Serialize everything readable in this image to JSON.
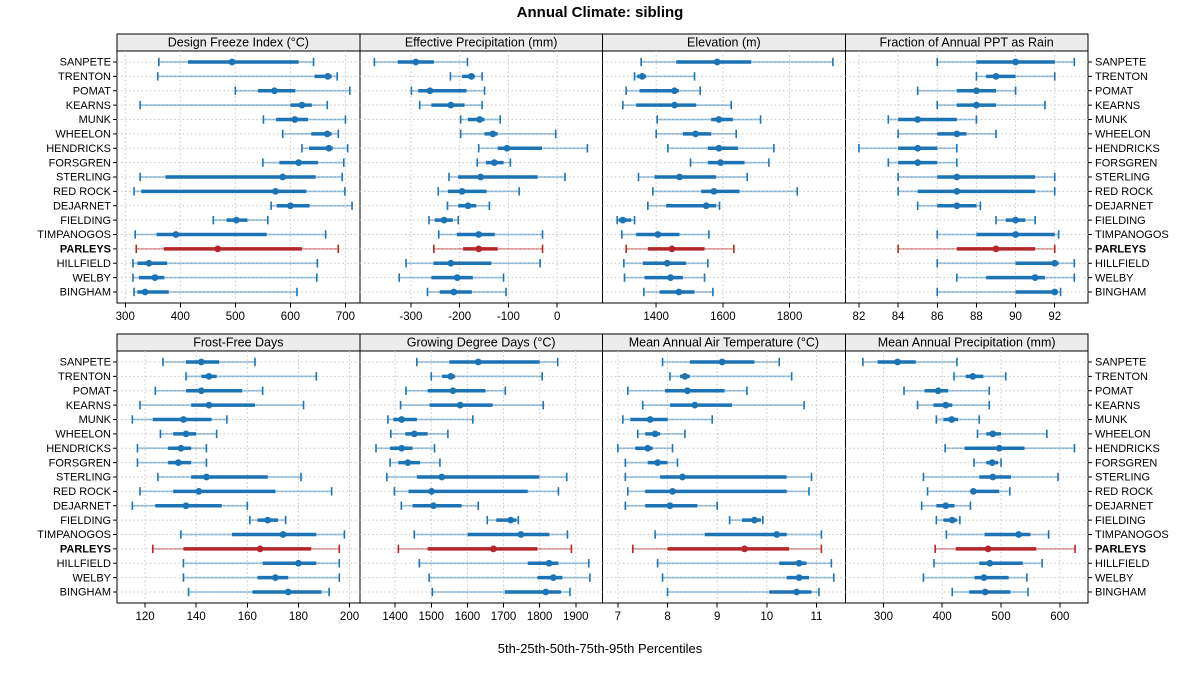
{
  "title": "Annual Climate: sibling",
  "caption": "5th-25th-50th-75th-95th Percentiles",
  "colors": {
    "blue": "#1c74b4",
    "blue_light": "rgba(28,116,180,0.40)",
    "red": "#b5262b",
    "red_light": "rgba(181,38,43,0.40)",
    "strip_bg": "#ececec",
    "grid": "#c6c6c6",
    "border": "#000000"
  },
  "chart_data": {
    "type": "trellis-dotplot-percentiles",
    "percentiles": [
      5,
      25,
      50,
      75,
      95
    ],
    "legend_note": "5th-25th-50th-75th-95th Percentiles",
    "highlight_station": "PARLEYS",
    "stations": [
      "SANPETE",
      "TRENTON",
      "POMAT",
      "KEARNS",
      "MUNK",
      "WHEELON",
      "HENDRICKS",
      "FORSGREN",
      "STERLING",
      "RED ROCK",
      "DEJARNET",
      "FIELDING",
      "TIMPANOGOS",
      "PARLEYS",
      "HILLFIELD",
      "WELBY",
      "BINGHAM"
    ],
    "panels": [
      {
        "title": "Design Freeze Index (°C)",
        "xlim": [
          285,
          726
        ],
        "ticks": [
          300,
          400,
          500,
          600,
          700
        ],
        "values": [
          [
            361,
            414,
            494,
            615,
            642
          ],
          [
            359,
            644,
            668,
            675,
            685
          ],
          [
            500,
            541,
            571,
            609,
            708
          ],
          [
            327,
            600,
            621,
            639,
            667
          ],
          [
            551,
            574,
            608,
            632,
            700
          ],
          [
            586,
            638,
            667,
            675,
            687
          ],
          [
            621,
            634,
            670,
            677,
            704
          ],
          [
            550,
            580,
            615,
            650,
            697
          ],
          [
            327,
            373,
            586,
            646,
            694
          ],
          [
            316,
            329,
            573,
            629,
            699
          ],
          [
            565,
            575,
            600,
            635,
            712
          ],
          [
            460,
            484,
            502,
            522,
            559
          ],
          [
            318,
            357,
            392,
            557,
            664
          ],
          [
            320,
            370,
            468,
            621,
            687
          ],
          [
            314,
            322,
            343,
            376,
            649
          ],
          [
            314,
            325,
            354,
            371,
            648
          ],
          [
            316,
            322,
            336,
            379,
            612
          ]
        ]
      },
      {
        "title": "Effective Precipitation (mm)",
        "xlim": [
          -405,
          93
        ],
        "ticks": [
          -300,
          -200,
          -100,
          0
        ],
        "values": [
          [
            -375,
            -327,
            -290,
            -253,
            -184
          ],
          [
            -219,
            -195,
            -176,
            -169,
            -154
          ],
          [
            -299,
            -285,
            -261,
            -186,
            -149
          ],
          [
            -282,
            -258,
            -218,
            -190,
            -154
          ],
          [
            -198,
            -183,
            -159,
            -149,
            -117
          ],
          [
            -198,
            -149,
            -132,
            -122,
            -3
          ],
          [
            -161,
            -122,
            -103,
            -31,
            62
          ],
          [
            -164,
            -146,
            -129,
            -110,
            -96
          ],
          [
            -222,
            -203,
            -157,
            -40,
            16
          ],
          [
            -244,
            -224,
            -195,
            -145,
            -78
          ],
          [
            -225,
            -203,
            -183,
            -166,
            -139
          ],
          [
            -263,
            -251,
            -232,
            -214,
            -203
          ],
          [
            -243,
            -206,
            -161,
            -128,
            -30
          ],
          [
            -253,
            -193,
            -161,
            -122,
            -30
          ],
          [
            -310,
            -254,
            -218,
            -135,
            -35
          ],
          [
            -324,
            -258,
            -205,
            -173,
            -110
          ],
          [
            -266,
            -241,
            -212,
            -175,
            -105
          ]
        ]
      },
      {
        "title": "Elevation (m)",
        "xlim": [
          1239,
          1967
        ],
        "ticks": [
          1400,
          1600,
          1800
        ],
        "values": [
          [
            1355,
            1460,
            1583,
            1685,
            1930
          ],
          [
            1335,
            1343,
            1358,
            1370,
            1515
          ],
          [
            1310,
            1350,
            1455,
            1468,
            1532
          ],
          [
            1300,
            1340,
            1455,
            1520,
            1625
          ],
          [
            1403,
            1565,
            1588,
            1630,
            1713
          ],
          [
            1400,
            1480,
            1518,
            1565,
            1640
          ],
          [
            1435,
            1555,
            1588,
            1645,
            1753
          ],
          [
            1503,
            1555,
            1593,
            1665,
            1738
          ],
          [
            1347,
            1395,
            1470,
            1580,
            1673
          ],
          [
            1390,
            1535,
            1573,
            1650,
            1823
          ],
          [
            1375,
            1430,
            1550,
            1580,
            1590
          ],
          [
            1283,
            1287,
            1300,
            1325,
            1335
          ],
          [
            1297,
            1340,
            1405,
            1470,
            1558
          ],
          [
            1310,
            1375,
            1447,
            1545,
            1633
          ],
          [
            1303,
            1360,
            1433,
            1490,
            1555
          ],
          [
            1305,
            1365,
            1443,
            1480,
            1545
          ],
          [
            1363,
            1410,
            1468,
            1515,
            1570
          ]
        ]
      },
      {
        "title": "Fraction of Annual PPT as Rain",
        "xlim": [
          81.3,
          93.7
        ],
        "ticks": [
          82,
          84,
          86,
          88,
          90,
          92
        ],
        "values": [
          [
            86,
            88,
            90,
            92,
            93
          ],
          [
            88,
            88.5,
            89,
            90,
            92
          ],
          [
            85,
            87,
            88,
            89,
            90
          ],
          [
            86,
            87,
            88,
            89,
            91.5
          ],
          [
            83.5,
            84,
            85,
            87,
            88
          ],
          [
            84,
            86,
            87,
            87.5,
            89
          ],
          [
            82,
            84,
            85,
            86,
            87
          ],
          [
            83.5,
            84,
            85,
            86,
            87
          ],
          [
            84,
            86,
            87,
            91,
            92
          ],
          [
            84,
            85,
            87,
            91,
            92
          ],
          [
            85,
            86,
            87,
            88,
            88.2
          ],
          [
            89,
            89.5,
            90,
            90.5,
            91
          ],
          [
            86,
            88,
            90,
            92,
            92.2
          ],
          [
            84,
            87,
            89,
            91,
            92
          ],
          [
            86,
            90,
            92,
            92.2,
            93
          ],
          [
            87,
            88.5,
            91,
            91.5,
            93
          ],
          [
            86,
            90,
            92,
            92.1,
            92.3
          ]
        ]
      },
      {
        "title": "Frost-Free Days",
        "xlim": [
          109,
          204
        ],
        "ticks": [
          120,
          140,
          160,
          180,
          200
        ],
        "values": [
          [
            127,
            136,
            142,
            149,
            163
          ],
          [
            136,
            142,
            145,
            148,
            187
          ],
          [
            124,
            136,
            142,
            158,
            166
          ],
          [
            118,
            138,
            145,
            163,
            182
          ],
          [
            115,
            123,
            135,
            146,
            152
          ],
          [
            126,
            131,
            136,
            140,
            148
          ],
          [
            117,
            129,
            134,
            138,
            144
          ],
          [
            117,
            129,
            133,
            138,
            144
          ],
          [
            125,
            138,
            144,
            168,
            181
          ],
          [
            118,
            131,
            141,
            171,
            193
          ],
          [
            115,
            124,
            136,
            150,
            160
          ],
          [
            161,
            164,
            168,
            172,
            175
          ],
          [
            134,
            154,
            174,
            187,
            198
          ],
          [
            123,
            135,
            165,
            185,
            196
          ],
          [
            135,
            166,
            180,
            187,
            196
          ],
          [
            135,
            164,
            171,
            176,
            196
          ],
          [
            137,
            162,
            176,
            189,
            192
          ]
        ]
      },
      {
        "title": "Growing Degree Days (°C)",
        "xlim": [
          1302,
          1974
        ],
        "ticks": [
          1400,
          1500,
          1600,
          1700,
          1800,
          1900
        ],
        "values": [
          [
            1460,
            1550,
            1630,
            1800,
            1850
          ],
          [
            1500,
            1530,
            1554,
            1566,
            1807
          ],
          [
            1430,
            1490,
            1560,
            1650,
            1705
          ],
          [
            1415,
            1495,
            1580,
            1670,
            1810
          ],
          [
            1380,
            1395,
            1418,
            1460,
            1615
          ],
          [
            1388,
            1428,
            1453,
            1490,
            1546
          ],
          [
            1347,
            1386,
            1418,
            1448,
            1509
          ],
          [
            1386,
            1409,
            1435,
            1469,
            1524
          ],
          [
            1377,
            1460,
            1529,
            1799,
            1875
          ],
          [
            1398,
            1437,
            1501,
            1767,
            1852
          ],
          [
            1417,
            1448,
            1506,
            1584,
            1630
          ],
          [
            1655,
            1680,
            1720,
            1736,
            1741
          ],
          [
            1453,
            1601,
            1748,
            1827,
            1877
          ],
          [
            1409,
            1490,
            1672,
            1794,
            1888
          ],
          [
            1467,
            1767,
            1826,
            1852,
            1936
          ],
          [
            1494,
            1794,
            1838,
            1863,
            1939
          ],
          [
            1503,
            1704,
            1817,
            1859,
            1884
          ]
        ]
      },
      {
        "title": "Mean Annual Air Temperature (°C)",
        "xlim": [
          6.69,
          11.58
        ],
        "ticks": [
          7,
          8,
          9,
          10,
          11
        ],
        "values": [
          [
            7.9,
            8.45,
            9.1,
            9.75,
            10.25
          ],
          [
            8.05,
            8.25,
            8.35,
            8.45,
            10.5
          ],
          [
            7.2,
            7.95,
            8.4,
            9.15,
            9.6
          ],
          [
            7.5,
            8.05,
            8.55,
            9.3,
            10.75
          ],
          [
            7.1,
            7.25,
            7.65,
            8.0,
            8.9
          ],
          [
            7.4,
            7.55,
            7.75,
            7.85,
            8.35
          ],
          [
            7.0,
            7.35,
            7.6,
            7.7,
            8.1
          ],
          [
            7.15,
            7.6,
            7.8,
            8.0,
            8.2
          ],
          [
            7.15,
            7.85,
            8.3,
            10.4,
            10.9
          ],
          [
            7.2,
            7.55,
            8.1,
            10.4,
            10.85
          ],
          [
            7.15,
            7.55,
            8.05,
            8.6,
            9.0
          ],
          [
            9.25,
            9.5,
            9.75,
            9.88,
            9.92
          ],
          [
            7.75,
            8.75,
            10.2,
            10.4,
            11.1
          ],
          [
            7.3,
            8.0,
            9.55,
            10.45,
            11.1
          ],
          [
            7.8,
            10.25,
            10.65,
            10.8,
            11.3
          ],
          [
            7.9,
            10.4,
            10.65,
            10.85,
            11.35
          ],
          [
            8.0,
            10.05,
            10.6,
            10.9,
            11.05
          ]
        ]
      },
      {
        "title": "Mean Annual Precipitation (mm)",
        "xlim": [
          235,
          648
        ],
        "ticks": [
          300,
          400,
          500,
          600
        ],
        "values": [
          [
            265,
            290,
            324,
            355,
            425
          ],
          [
            420,
            440,
            452,
            470,
            508
          ],
          [
            335,
            370,
            393,
            410,
            480
          ],
          [
            358,
            385,
            406,
            417,
            480
          ],
          [
            390,
            402,
            416,
            427,
            463
          ],
          [
            460,
            475,
            486,
            500,
            578
          ],
          [
            405,
            438,
            497,
            540,
            625
          ],
          [
            454,
            475,
            485,
            495,
            500
          ],
          [
            368,
            463,
            486,
            517,
            597
          ],
          [
            375,
            448,
            453,
            497,
            515
          ],
          [
            365,
            390,
            406,
            421,
            448
          ],
          [
            390,
            402,
            417,
            425,
            430
          ],
          [
            407,
            472,
            530,
            550,
            581
          ],
          [
            388,
            423,
            478,
            560,
            626
          ],
          [
            386,
            463,
            481,
            537,
            570
          ],
          [
            368,
            455,
            471,
            513,
            544
          ],
          [
            417,
            446,
            473,
            516,
            546
          ]
        ]
      }
    ]
  }
}
